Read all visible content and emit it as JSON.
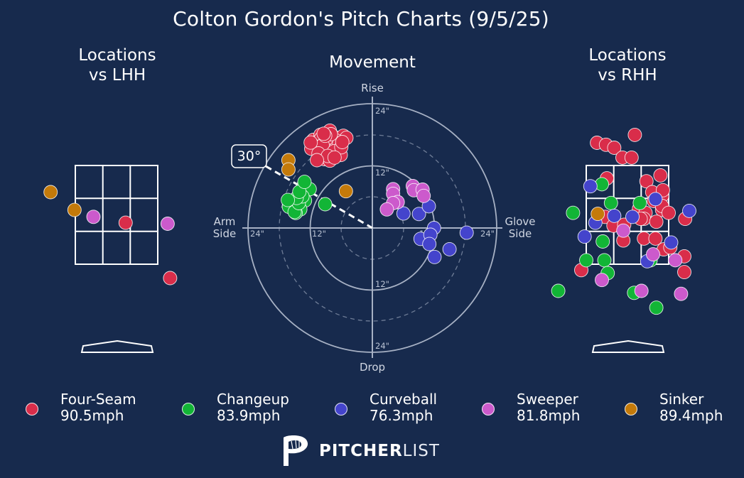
{
  "title": "Colton Gordon's Pitch Charts (9/5/25)",
  "panels": {
    "lhh_title_line1": "Locations",
    "lhh_title_line2": "vs LHH",
    "rhh_title_line1": "Locations",
    "rhh_title_line2": "vs RHH",
    "movement_title": "Movement"
  },
  "pitch_colors": {
    "Four-Seam": "#d92d4a",
    "Changeup": "#12b536",
    "Curveball": "#4444cc",
    "Sweeper": "#cc5acc",
    "Sinker": "#c47a0a"
  },
  "legend": [
    {
      "pitch": "Four-Seam",
      "speed": "90.5mph"
    },
    {
      "pitch": "Changeup",
      "speed": "83.9mph"
    },
    {
      "pitch": "Curveball",
      "speed": "76.3mph"
    },
    {
      "pitch": "Sweeper",
      "speed": "81.8mph"
    },
    {
      "pitch": "Sinker",
      "speed": "89.4mph"
    }
  ],
  "logo": {
    "bold": "PITCHER",
    "light": "LIST",
    "icon": "pitcherlist-p-icon"
  },
  "chart_data": [
    {
      "type": "scatter",
      "title": "Locations vs LHH",
      "units": "strike-zone fractions (x: 0 = left edge, 1 = right edge; y: 0 = bottom, 1 = top)",
      "points": [
        {
          "pitch": "Sinker",
          "x": -0.3,
          "y": 0.73
        },
        {
          "pitch": "Sinker",
          "x": -0.01,
          "y": 0.55
        },
        {
          "pitch": "Sweeper",
          "x": 0.22,
          "y": 0.48
        },
        {
          "pitch": "Four-Seam",
          "x": 0.61,
          "y": 0.42
        },
        {
          "pitch": "Sweeper",
          "x": 1.12,
          "y": 0.41
        },
        {
          "pitch": "Four-Seam",
          "x": 1.15,
          "y": -0.14
        }
      ]
    },
    {
      "type": "scatter",
      "title": "Movement",
      "units": "inches (x: + toward glove side, y: + rise)",
      "rings": [
        12,
        24
      ],
      "dashed_rings": [
        6,
        18
      ],
      "ring_labels": [
        "12\"",
        "24\""
      ],
      "axis_labels": {
        "top": "Rise",
        "bottom": "Drop",
        "left": "Arm\nSide",
        "right": "Glove\nSide"
      },
      "arm_angle": "30°",
      "points": [
        {
          "pitch": "Four-Seam",
          "x": -11.4,
          "y": 17.0
        },
        {
          "pitch": "Four-Seam",
          "x": -10.0,
          "y": 18.0
        },
        {
          "pitch": "Four-Seam",
          "x": -9.0,
          "y": 16.8
        },
        {
          "pitch": "Four-Seam",
          "x": -8.2,
          "y": 18.8
        },
        {
          "pitch": "Four-Seam",
          "x": -7.4,
          "y": 17.6
        },
        {
          "pitch": "Four-Seam",
          "x": -6.4,
          "y": 17.2
        },
        {
          "pitch": "Four-Seam",
          "x": -5.6,
          "y": 17.8
        },
        {
          "pitch": "Four-Seam",
          "x": -6.9,
          "y": 16.5
        },
        {
          "pitch": "Four-Seam",
          "x": -8.8,
          "y": 15.5
        },
        {
          "pitch": "Four-Seam",
          "x": -10.2,
          "y": 16.4
        },
        {
          "pitch": "Four-Seam",
          "x": -9.7,
          "y": 14.7
        },
        {
          "pitch": "Four-Seam",
          "x": -7.2,
          "y": 15.4
        },
        {
          "pitch": "Four-Seam",
          "x": -6.9,
          "y": 14.6
        },
        {
          "pitch": "Four-Seam",
          "x": -10.5,
          "y": 16.7
        },
        {
          "pitch": "Four-Seam",
          "x": -8.5,
          "y": 15.3
        },
        {
          "pitch": "Four-Seam",
          "x": -7.8,
          "y": 16.0
        },
        {
          "pitch": "Four-Seam",
          "x": -9.9,
          "y": 17.3
        },
        {
          "pitch": "Four-Seam",
          "x": -8.8,
          "y": 15.9
        },
        {
          "pitch": "Four-Seam",
          "x": -7.0,
          "y": 16.9
        },
        {
          "pitch": "Four-Seam",
          "x": -8.8,
          "y": 17.3
        },
        {
          "pitch": "Four-Seam",
          "x": -6.4,
          "y": 16.3
        },
        {
          "pitch": "Four-Seam",
          "x": -10.9,
          "y": 15.7
        },
        {
          "pitch": "Four-Seam",
          "x": -9.3,
          "y": 14.9
        },
        {
          "pitch": "Four-Seam",
          "x": -5.0,
          "y": 17.4
        },
        {
          "pitch": "Four-Seam",
          "x": -9.3,
          "y": 13.3
        },
        {
          "pitch": "Four-Seam",
          "x": -6.1,
          "y": 14.1
        },
        {
          "pitch": "Four-Seam",
          "x": -8.2,
          "y": 13.0
        },
        {
          "pitch": "Four-Seam",
          "x": -10.0,
          "y": 13.9
        },
        {
          "pitch": "Four-Seam",
          "x": -11.8,
          "y": 15.3
        },
        {
          "pitch": "Four-Seam",
          "x": -9.6,
          "y": 16.0
        },
        {
          "pitch": "Four-Seam",
          "x": -10.4,
          "y": 14.4
        },
        {
          "pitch": "Four-Seam",
          "x": -7.4,
          "y": 14.8
        },
        {
          "pitch": "Four-Seam",
          "x": -8.0,
          "y": 18.1
        },
        {
          "pitch": "Four-Seam",
          "x": -6.0,
          "y": 15.6
        },
        {
          "pitch": "Four-Seam",
          "x": -9.1,
          "y": 17.8
        },
        {
          "pitch": "Four-Seam",
          "x": -8.6,
          "y": 13.9
        },
        {
          "pitch": "Four-Seam",
          "x": -10.7,
          "y": 13.1
        },
        {
          "pitch": "Four-Seam",
          "x": -7.3,
          "y": 13.6
        },
        {
          "pitch": "Four-Seam",
          "x": -5.8,
          "y": 16.6
        },
        {
          "pitch": "Four-Seam",
          "x": -9.4,
          "y": 18.2
        },
        {
          "pitch": "Four-Seam",
          "x": -11.9,
          "y": 16.5
        },
        {
          "pitch": "Changeup",
          "x": -13.2,
          "y": 8.4
        },
        {
          "pitch": "Changeup",
          "x": -12.1,
          "y": 7.5
        },
        {
          "pitch": "Changeup",
          "x": -13.0,
          "y": 5.3
        },
        {
          "pitch": "Changeup",
          "x": -14.7,
          "y": 4.3
        },
        {
          "pitch": "Changeup",
          "x": -13.9,
          "y": 3.6
        },
        {
          "pitch": "Changeup",
          "x": -14.8,
          "y": 2.9
        },
        {
          "pitch": "Changeup",
          "x": -15.3,
          "y": 3.8
        },
        {
          "pitch": "Changeup",
          "x": -16.1,
          "y": 4.1
        },
        {
          "pitch": "Changeup",
          "x": -15.0,
          "y": 3.1
        },
        {
          "pitch": "Changeup",
          "x": -14.2,
          "y": 4.8
        },
        {
          "pitch": "Changeup",
          "x": -13.5,
          "y": 6.1
        },
        {
          "pitch": "Changeup",
          "x": -14.6,
          "y": 5.8
        },
        {
          "pitch": "Changeup",
          "x": -14.1,
          "y": 7.0
        },
        {
          "pitch": "Changeup",
          "x": -16.3,
          "y": 5.4
        },
        {
          "pitch": "Changeup",
          "x": -9.1,
          "y": 4.6
        },
        {
          "pitch": "Changeup",
          "x": -13.1,
          "y": 8.9
        },
        {
          "pitch": "Curveball",
          "x": 6.0,
          "y": 2.8
        },
        {
          "pitch": "Curveball",
          "x": 9.0,
          "y": 2.7
        },
        {
          "pitch": "Curveball",
          "x": 10.9,
          "y": 4.2
        },
        {
          "pitch": "Curveball",
          "x": 11.9,
          "y": 0.0
        },
        {
          "pitch": "Curveball",
          "x": 18.2,
          "y": -0.9
        },
        {
          "pitch": "Curveball",
          "x": 9.3,
          "y": -2.1
        },
        {
          "pitch": "Curveball",
          "x": 11.2,
          "y": -1.3
        },
        {
          "pitch": "Curveball",
          "x": 11.0,
          "y": -3.1
        },
        {
          "pitch": "Curveball",
          "x": 14.9,
          "y": -4.1
        },
        {
          "pitch": "Curveball",
          "x": 12.0,
          "y": -5.6
        },
        {
          "pitch": "Sweeper",
          "x": 7.8,
          "y": 8.1
        },
        {
          "pitch": "Sweeper",
          "x": 8.0,
          "y": 7.3
        },
        {
          "pitch": "Sweeper",
          "x": 9.7,
          "y": 7.4
        },
        {
          "pitch": "Sweeper",
          "x": 9.9,
          "y": 6.2
        },
        {
          "pitch": "Sweeper",
          "x": 4.0,
          "y": 7.5
        },
        {
          "pitch": "Sweeper",
          "x": 4.0,
          "y": 6.6
        },
        {
          "pitch": "Sweeper",
          "x": 4.9,
          "y": 5.0
        },
        {
          "pitch": "Sweeper",
          "x": 4.0,
          "y": 4.8
        },
        {
          "pitch": "Sweeper",
          "x": 2.8,
          "y": 3.6
        },
        {
          "pitch": "Sinker",
          "x": -16.2,
          "y": 13.1
        },
        {
          "pitch": "Sinker",
          "x": -16.2,
          "y": 11.3
        },
        {
          "pitch": "Sinker",
          "x": -5.1,
          "y": 7.1
        }
      ]
    },
    {
      "type": "scatter",
      "title": "Locations vs RHH",
      "units": "strike-zone fractions (x: 0 = left edge, 1 = right edge; y: 0 = bottom, 1 = top)",
      "points": [
        {
          "pitch": "Four-Seam",
          "x": 0.59,
          "y": 1.31
        },
        {
          "pitch": "Four-Seam",
          "x": 0.13,
          "y": 1.23
        },
        {
          "pitch": "Four-Seam",
          "x": 0.24,
          "y": 1.21
        },
        {
          "pitch": "Four-Seam",
          "x": 0.34,
          "y": 1.18
        },
        {
          "pitch": "Four-Seam",
          "x": 0.44,
          "y": 1.08
        },
        {
          "pitch": "Four-Seam",
          "x": 0.55,
          "y": 1.08
        },
        {
          "pitch": "Four-Seam",
          "x": 0.25,
          "y": 0.87
        },
        {
          "pitch": "Four-Seam",
          "x": 0.73,
          "y": 0.84
        },
        {
          "pitch": "Four-Seam",
          "x": 0.9,
          "y": 0.9
        },
        {
          "pitch": "Four-Seam",
          "x": 0.8,
          "y": 0.73
        },
        {
          "pitch": "Four-Seam",
          "x": 0.92,
          "y": 0.69
        },
        {
          "pitch": "Four-Seam",
          "x": 0.93,
          "y": 0.75
        },
        {
          "pitch": "Four-Seam",
          "x": 0.64,
          "y": 0.56
        },
        {
          "pitch": "Four-Seam",
          "x": 0.72,
          "y": 0.52
        },
        {
          "pitch": "Four-Seam",
          "x": 0.92,
          "y": 0.55
        },
        {
          "pitch": "Four-Seam",
          "x": 0.82,
          "y": 0.64
        },
        {
          "pitch": "Four-Seam",
          "x": 0.92,
          "y": 0.59
        },
        {
          "pitch": "Four-Seam",
          "x": 1.0,
          "y": 0.52
        },
        {
          "pitch": "Four-Seam",
          "x": 0.7,
          "y": 0.46
        },
        {
          "pitch": "Four-Seam",
          "x": 0.85,
          "y": 0.43
        },
        {
          "pitch": "Four-Seam",
          "x": 0.66,
          "y": 0.46
        },
        {
          "pitch": "Four-Seam",
          "x": 0.23,
          "y": 0.48
        },
        {
          "pitch": "Four-Seam",
          "x": 0.33,
          "y": 0.39
        },
        {
          "pitch": "Four-Seam",
          "x": 0.46,
          "y": 0.4
        },
        {
          "pitch": "Four-Seam",
          "x": 0.45,
          "y": 0.24
        },
        {
          "pitch": "Four-Seam",
          "x": 0.7,
          "y": 0.26
        },
        {
          "pitch": "Four-Seam",
          "x": 0.84,
          "y": 0.26
        },
        {
          "pitch": "Four-Seam",
          "x": 0.94,
          "y": 0.15
        },
        {
          "pitch": "Four-Seam",
          "x": 1.02,
          "y": 0.17
        },
        {
          "pitch": "Four-Seam",
          "x": 1.2,
          "y": 0.46
        },
        {
          "pitch": "Four-Seam",
          "x": 1.19,
          "y": 0.08
        },
        {
          "pitch": "Four-Seam",
          "x": 1.19,
          "y": -0.08
        },
        {
          "pitch": "Four-Seam",
          "x": -0.06,
          "y": -0.06
        },
        {
          "pitch": "Changeup",
          "x": 0.19,
          "y": 0.81
        },
        {
          "pitch": "Changeup",
          "x": -0.16,
          "y": 0.52
        },
        {
          "pitch": "Changeup",
          "x": 0.3,
          "y": 0.62
        },
        {
          "pitch": "Changeup",
          "x": 0.65,
          "y": 0.62
        },
        {
          "pitch": "Changeup",
          "x": 0.2,
          "y": 0.23
        },
        {
          "pitch": "Changeup",
          "x": 0.78,
          "y": 0.04
        },
        {
          "pitch": "Changeup",
          "x": 0.0,
          "y": 0.04
        },
        {
          "pitch": "Changeup",
          "x": 0.22,
          "y": 0.04
        },
        {
          "pitch": "Changeup",
          "x": 0.26,
          "y": -0.09
        },
        {
          "pitch": "Changeup",
          "x": -0.34,
          "y": -0.27
        },
        {
          "pitch": "Changeup",
          "x": 0.58,
          "y": -0.29
        },
        {
          "pitch": "Changeup",
          "x": 0.85,
          "y": -0.44
        },
        {
          "pitch": "Curveball",
          "x": 0.05,
          "y": 0.79
        },
        {
          "pitch": "Curveball",
          "x": 0.84,
          "y": 0.66
        },
        {
          "pitch": "Curveball",
          "x": 1.25,
          "y": 0.54
        },
        {
          "pitch": "Curveball",
          "x": 0.34,
          "y": 0.49
        },
        {
          "pitch": "Curveball",
          "x": 0.56,
          "y": 0.48
        },
        {
          "pitch": "Curveball",
          "x": 0.11,
          "y": 0.42
        },
        {
          "pitch": "Curveball",
          "x": -0.02,
          "y": 0.28
        },
        {
          "pitch": "Curveball",
          "x": 1.03,
          "y": 0.22
        },
        {
          "pitch": "Curveball",
          "x": 0.74,
          "y": 0.03
        },
        {
          "pitch": "Sweeper",
          "x": 0.45,
          "y": 0.34
        },
        {
          "pitch": "Sweeper",
          "x": 0.81,
          "y": 0.1
        },
        {
          "pitch": "Sweeper",
          "x": 1.08,
          "y": 0.04
        },
        {
          "pitch": "Sweeper",
          "x": 0.19,
          "y": -0.16
        },
        {
          "pitch": "Sweeper",
          "x": 0.67,
          "y": -0.27
        },
        {
          "pitch": "Sweeper",
          "x": 1.15,
          "y": -0.3
        },
        {
          "pitch": "Sinker",
          "x": 0.14,
          "y": 0.51
        }
      ]
    }
  ]
}
